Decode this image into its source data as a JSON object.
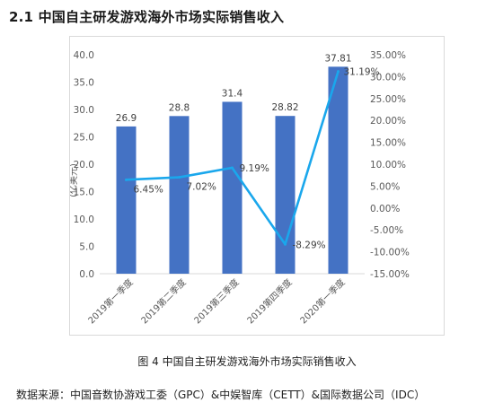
{
  "section_title": "2.1  中国自主研发游戏海外市场实际销售收入",
  "caption": "图 4  中国自主研发游戏海外市场实际销售收入",
  "source": "数据来源：中国音数协游戏工委（GPC）&中娱智库（CETT）&国际数据公司（IDC）",
  "chart_data": {
    "type": "bar",
    "categories": [
      "2019第一季度",
      "2019第二季度",
      "2019第三季度",
      "2019第四季度",
      "2020第一季度"
    ],
    "ylabel": "(亿美元)",
    "ylim": [
      0,
      40
    ],
    "yticks": [
      "0.0",
      "5.0",
      "10.0",
      "15.0",
      "20.0",
      "25.0",
      "30.0",
      "35.0",
      "40.0"
    ],
    "y2lim": [
      -15,
      35
    ],
    "y2ticks": [
      "-15.00%",
      "-10.00%",
      "-5.00%",
      "0.00%",
      "5.00%",
      "10.00%",
      "15.00%",
      "20.00%",
      "25.00%",
      "30.00%",
      "35.00%"
    ],
    "grid": false,
    "series": [
      {
        "type": "bar",
        "values": [
          26.9,
          28.8,
          31.4,
          28.82,
          37.81
        ],
        "labels": [
          "26.9",
          "28.8",
          "31.4",
          "28.82",
          "37.81"
        ],
        "color": "#4472c4"
      },
      {
        "type": "line",
        "axis": "right",
        "values": [
          6.45,
          7.02,
          9.19,
          -8.29,
          31.19
        ],
        "labels": [
          "6.45%",
          "7.02%",
          "9.19%",
          "-8.29%",
          "31.19%"
        ],
        "color": "#1aa7ec"
      }
    ]
  }
}
